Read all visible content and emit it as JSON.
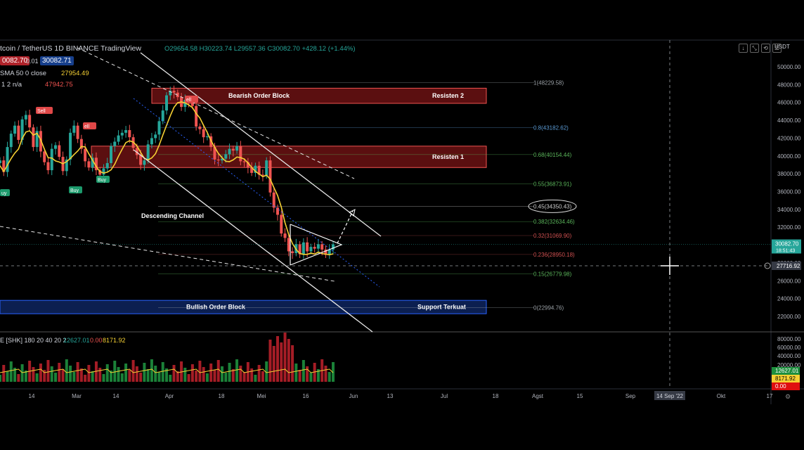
{
  "header": {
    "symbol": "tcoin / TetherUS  1D  BINANCE  TradingView",
    "ohlc": "O29654.58 H30223.74 L29557.36 C30082.70 +428.12 (+1.44%)",
    "bid": "0082.70",
    "spread": "0.01",
    "ask": "30082.71",
    "sma_label": "SMA 50 0 close",
    "sma_value": "27954.49",
    "ind2_label": "1 2  n/a",
    "ind2_value": "47942.75",
    "vol_label": "E [SHK] 180 20 40 20 2",
    "vol_v1": "12627.01",
    "vol_v2": "0.00",
    "vol_v3": "8171.92",
    "currency": "USDT"
  },
  "toolbar": [
    "↓",
    "⤡",
    "⟲",
    "☰"
  ],
  "colors": {
    "up": "#26a69a",
    "down": "#ef5350",
    "sma": "#f5d033",
    "bear_zone": "#7a1416",
    "bull_zone": "#102a6b",
    "fib_green": "#5ab45a",
    "fib_red": "#d05050",
    "fib_blue": "#5b9bd5",
    "fib_gray": "#9aa0a6"
  },
  "chart_data": {
    "type": "candlestick",
    "title": "",
    "xlabel": "",
    "ylabel": "",
    "ylim": [
      21000,
      52000
    ],
    "y_ticks": [
      "50000.00",
      "48000.00",
      "46000.00",
      "44000.00",
      "42000.00",
      "40000.00",
      "38000.00",
      "36000.00",
      "34000.00",
      "32000.00",
      "30000.00",
      "28000.00",
      "26000.00",
      "24000.00",
      "22000.00"
    ],
    "x_ticks": [
      "14",
      "Mar",
      "14",
      "Apr",
      "18",
      "Mei",
      "16",
      "Jun",
      "13",
      "Jul",
      "18",
      "Agst",
      "15",
      "Sep",
      "14 Sep '22",
      "Okt",
      "17"
    ],
    "close_series": [
      39500,
      38200,
      41000,
      42500,
      43400,
      41800,
      44100,
      44600,
      43200,
      41000,
      42800,
      40500,
      39300,
      38400,
      40800,
      41200,
      39900,
      38300,
      39600,
      42600,
      43400,
      41900,
      40800,
      39400,
      38700,
      39800,
      38400,
      37900,
      38600,
      39200,
      41100,
      41600,
      42300,
      42600,
      42900,
      42100,
      40900,
      40100,
      39000,
      39500,
      41300,
      42000,
      42400,
      43900,
      45100,
      46800,
      47300,
      47100,
      46600,
      45500,
      46300,
      46100,
      45600,
      43300,
      43000,
      42100,
      42200,
      41000,
      39600,
      39500,
      39700,
      40200,
      40800,
      40600,
      41100,
      39400,
      39300,
      38700,
      38100,
      38900,
      37900,
      37800,
      39500,
      35900,
      34200,
      33400,
      31300,
      30800,
      29300,
      29100,
      30100,
      29000,
      30300,
      29300,
      29800,
      29600,
      30100,
      29500,
      28900,
      29500,
      30082
    ],
    "sma_label_value": "27954.49",
    "fib_levels": [
      {
        "label": "1(48229.58)",
        "value": 48229.58
      },
      {
        "label": "0.8(43182.62)",
        "value": 43182.62
      },
      {
        "label": "0.68(40154.44)",
        "value": 40154.44
      },
      {
        "label": "0.55(36873.91)",
        "value": 36873.91
      },
      {
        "label": "0.45(34350.43)",
        "value": 34350.43
      },
      {
        "label": "0.382(32634.46)",
        "value": 32634.46
      },
      {
        "label": "0.32(31069.90)",
        "value": 31069.9
      },
      {
        "label": "0.236(28950.18)",
        "value": 28950.18
      },
      {
        "label": "0.15(26779.98)",
        "value": 26779.98
      },
      {
        "label": "0(22994.76)",
        "value": 22994.76
      }
    ],
    "zones": [
      {
        "label": "Bearish Order Block",
        "right_label": "Resisten 2",
        "top": 47600,
        "bottom": 45900
      },
      {
        "label": "",
        "right_label": "Resisten 1",
        "top": 41100,
        "bottom": 38700
      },
      {
        "label": "Bullish Order Block",
        "right_label": "Support Terkuat",
        "top": 23800,
        "bottom": 22300
      }
    ],
    "annotations": [
      "Descending Channel"
    ],
    "signals": [
      {
        "text": "Sell",
        "type": "sell"
      },
      {
        "text": "ell",
        "type": "sell"
      },
      {
        "text": "ell",
        "type": "sell"
      },
      {
        "text": "uy",
        "type": "buy"
      },
      {
        "text": "Buy",
        "type": "buy"
      },
      {
        "text": "Buy",
        "type": "buy"
      }
    ],
    "price_labels": {
      "last_price": "30082.70",
      "countdown": "18:51:43",
      "cursor_price": "27716.92",
      "vol_tags": [
        "12627.01",
        "8171.92",
        "0.00"
      ]
    },
    "volume_axis": [
      "80000.00",
      "60000.00",
      "40000.00",
      "20000.00"
    ]
  }
}
